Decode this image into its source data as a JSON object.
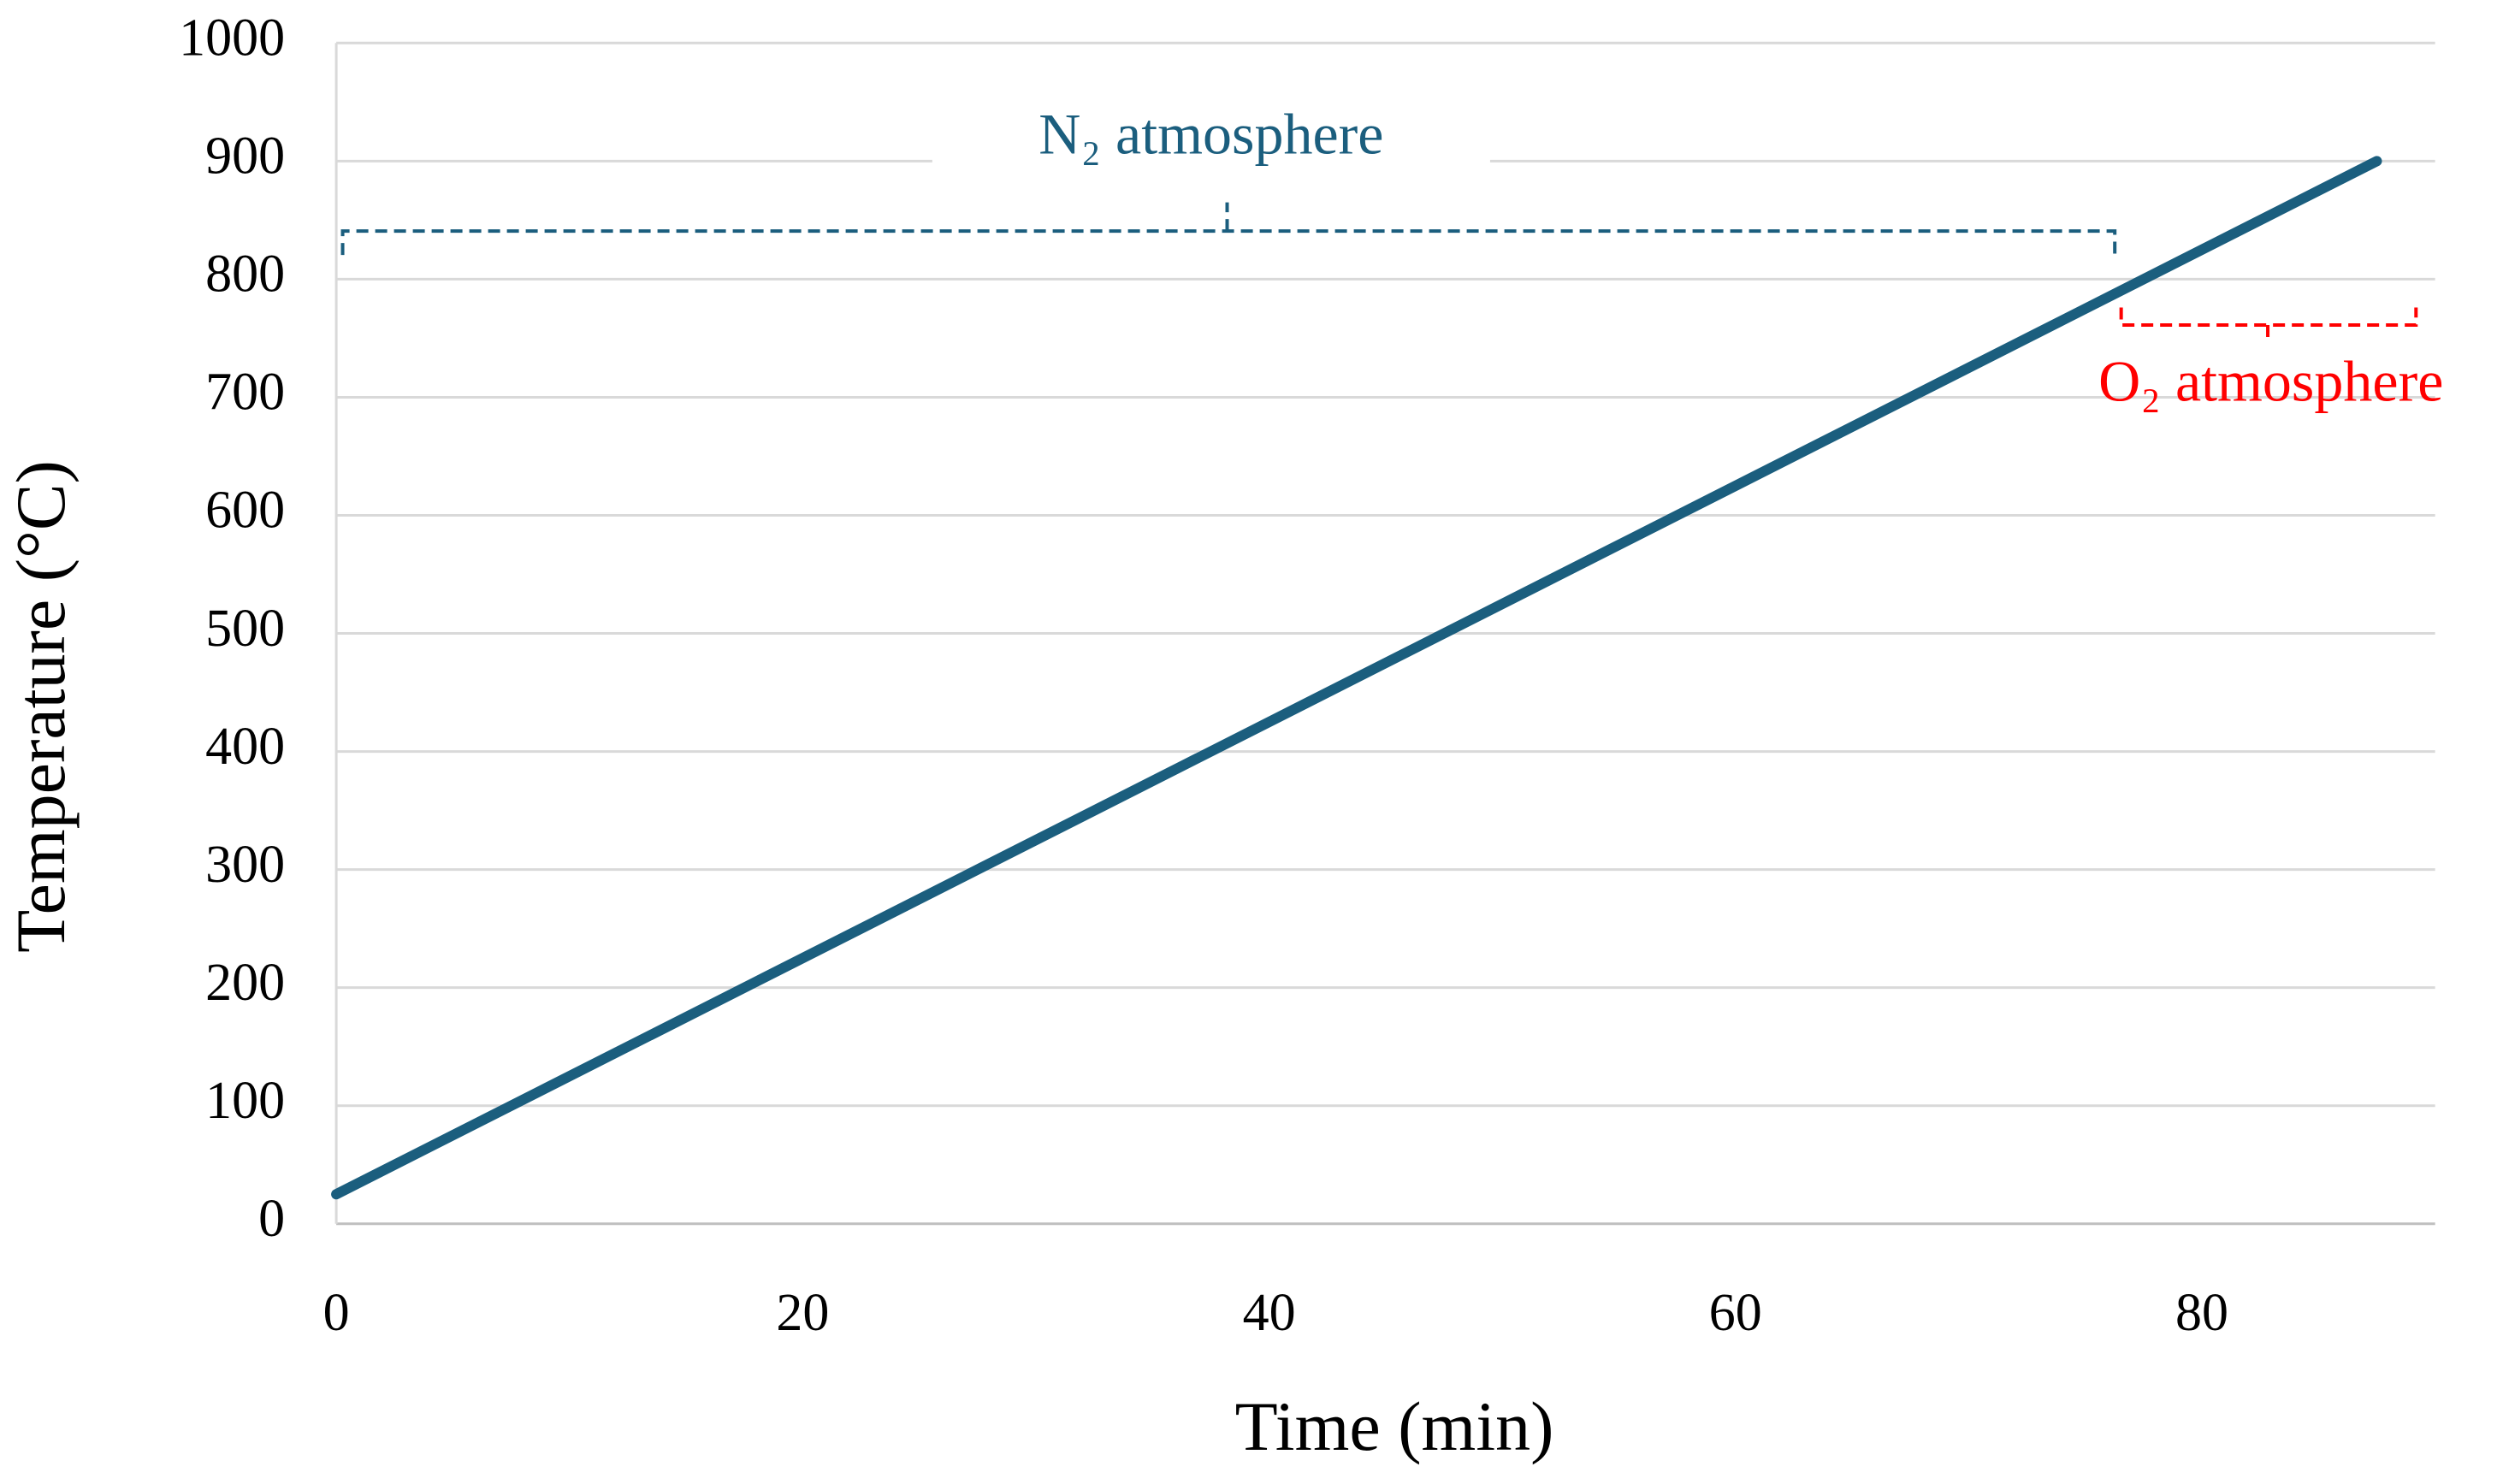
{
  "chart_data": {
    "type": "line",
    "x_label": "Time (min)",
    "y_label": "Temperature (°C)",
    "x": [
      0,
      87.5
    ],
    "values": [
      25,
      900
    ],
    "color": "#1b5e7e",
    "xlim": [
      0,
      90
    ],
    "xticks": [
      0,
      20,
      40,
      60,
      80
    ],
    "ylim": [
      0,
      1000
    ],
    "yticks": [
      0,
      100,
      200,
      300,
      400,
      500,
      600,
      700,
      800,
      900,
      1000
    ],
    "grid": true,
    "annotations": [
      {
        "text": "N₂ atmosphere",
        "color": "#1b5e7e"
      },
      {
        "text": "O₂ atmosphere",
        "color": "#ff0000"
      }
    ]
  }
}
